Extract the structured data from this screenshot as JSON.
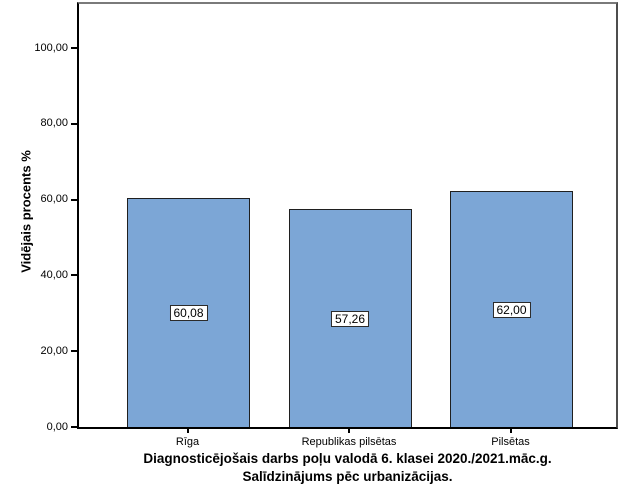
{
  "chart_data": {
    "type": "bar",
    "title_line1": "Diagnosticējošais darbs poļu valodā 6. klasei 2020./2021.māc.g.",
    "title_line2": "Salīdzinājums pēc urbanizācijas.",
    "ylabel": "Vidējais procents %",
    "xlabel": "",
    "categories": [
      "Rīga",
      "Republikas pilsētas",
      "Pilsētas"
    ],
    "values": [
      60.08,
      57.26,
      62.0
    ],
    "value_labels": [
      "60,08",
      "57,26",
      "62,00"
    ],
    "yticks": [
      {
        "value": 0,
        "label": "0,00"
      },
      {
        "value": 20,
        "label": "20,00"
      },
      {
        "value": 40,
        "label": "40,00"
      },
      {
        "value": 60,
        "label": "60,00"
      },
      {
        "value": 80,
        "label": "80,00"
      },
      {
        "value": 100,
        "label": "100,00"
      }
    ],
    "ylim": [
      0,
      111.6
    ],
    "grid": false,
    "legend_position": "none",
    "bar_color": "#7CA6D6",
    "bar_border_color": "#1f1f1f",
    "axis_color": "#000000",
    "frame_color": "#7a7a7a",
    "background_color": "#ffffff"
  }
}
